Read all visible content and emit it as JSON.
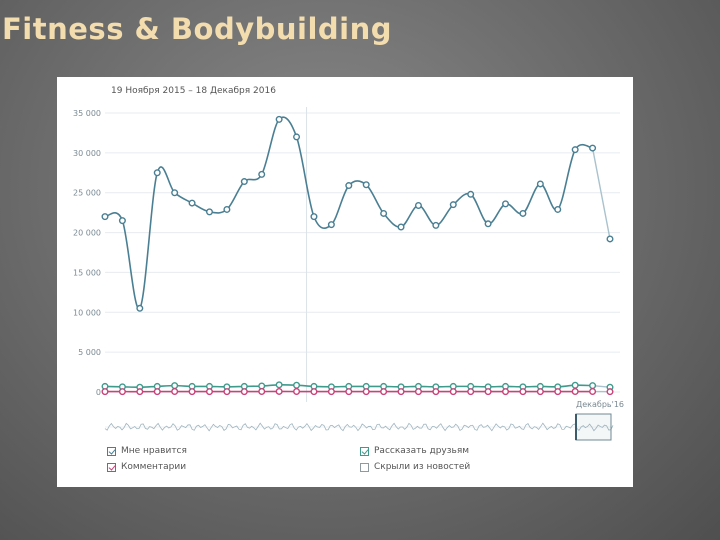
{
  "slide": {
    "title": "Fitness & Bodybuilding"
  },
  "chart_data": {
    "type": "line",
    "title": "",
    "date_range": "19 Ноября 2015 – 18 Декабря 2016",
    "xlabel": "",
    "ylabel": "",
    "ylim": [
      0,
      35000
    ],
    "y_ticks": [
      0,
      5000,
      10000,
      15000,
      20000,
      25000,
      30000,
      35000
    ],
    "y_tick_labels": [
      "0",
      "5 000",
      "10 000",
      "15 000",
      "20 000",
      "25 000",
      "30 000",
      "35 000"
    ],
    "x_marker_label": "Декабрь'16",
    "grid": true,
    "legend_position": "bottom",
    "series": [
      {
        "name": "Мне нравится",
        "color": "#4a7f93",
        "checked": true,
        "values": [
          22000,
          21500,
          10500,
          27500,
          25000,
          23700,
          22600,
          22900,
          26400,
          27300,
          34200,
          32000,
          22000,
          21000,
          25900,
          26000,
          22400,
          20700,
          23400,
          20900,
          23500,
          24800,
          21100,
          23600,
          22400,
          26100,
          22900,
          30400,
          30600,
          19200
        ]
      },
      {
        "name": "Рассказать друзьям",
        "color": "#3f9a8c",
        "checked": true,
        "values": [
          700,
          650,
          600,
          700,
          800,
          700,
          700,
          650,
          700,
          750,
          900,
          850,
          700,
          650,
          700,
          700,
          700,
          650,
          700,
          650,
          700,
          700,
          650,
          700,
          650,
          700,
          650,
          850,
          800,
          600
        ]
      },
      {
        "name": "Комментарии",
        "color": "#c8437a",
        "checked": true,
        "values": [
          50,
          50,
          40,
          50,
          60,
          50,
          50,
          50,
          50,
          60,
          70,
          60,
          50,
          50,
          50,
          50,
          50,
          50,
          50,
          50,
          50,
          50,
          50,
          50,
          50,
          50,
          50,
          60,
          60,
          40
        ]
      },
      {
        "name": "Скрыли из новостей",
        "color": "#8e9aa0",
        "checked": false,
        "values": []
      }
    ]
  }
}
